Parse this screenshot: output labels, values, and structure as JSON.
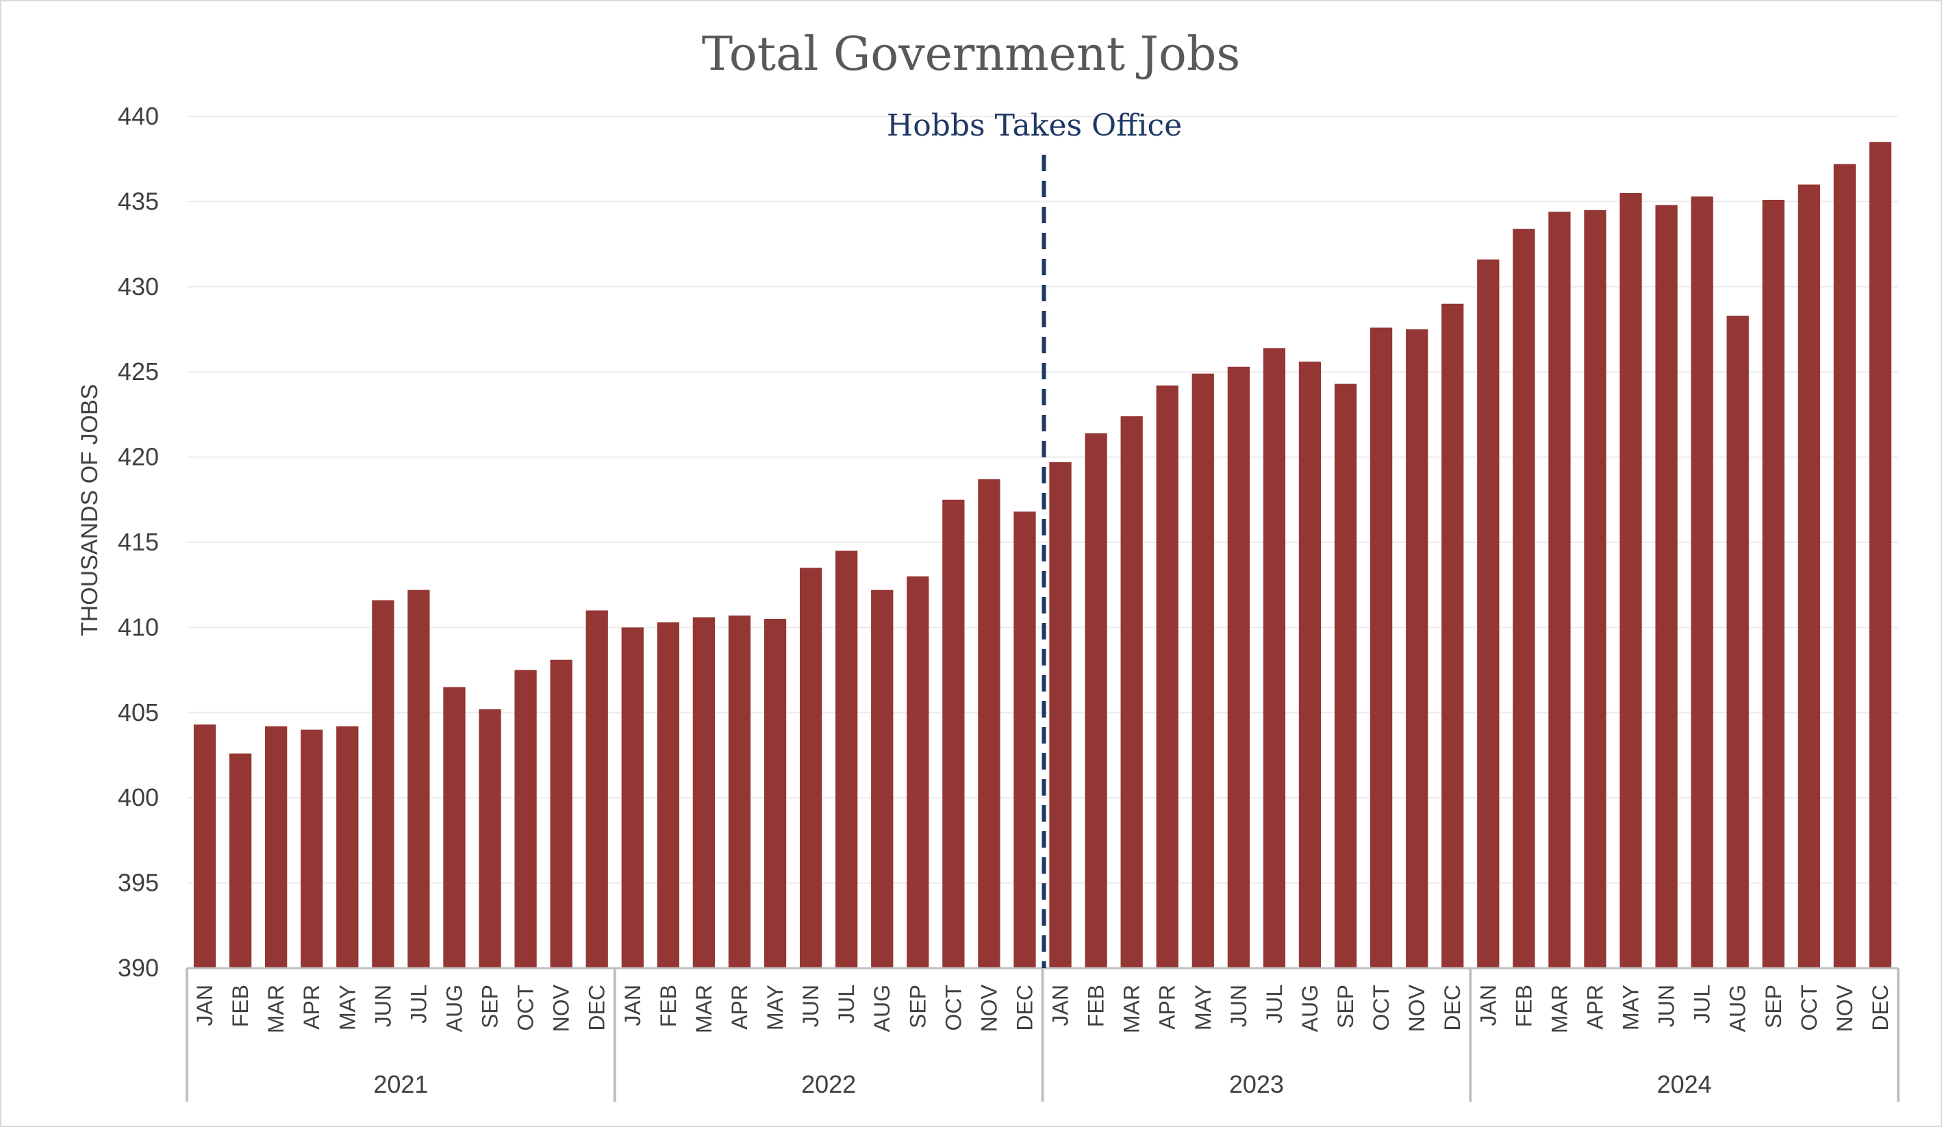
{
  "chart_data": {
    "type": "bar",
    "title": "Total Government Jobs",
    "ylabel": "THOUSANDS OF JOBS",
    "xlabel": "",
    "ylim": [
      390,
      440
    ],
    "yticks": [
      390,
      395,
      400,
      405,
      410,
      415,
      420,
      425,
      430,
      435,
      440
    ],
    "grid": true,
    "legend": "none",
    "bar_color": "#943634",
    "annotation": {
      "label": "Hobbs Takes Office",
      "position_between": [
        "2022 DEC",
        "2023 JAN"
      ],
      "style": "dashed",
      "color": "#1f3864"
    },
    "groups": [
      {
        "year": "2021",
        "months": [
          "JAN",
          "FEB",
          "MAR",
          "APR",
          "MAY",
          "JUN",
          "JUL",
          "AUG",
          "SEP",
          "OCT",
          "NOV",
          "DEC"
        ],
        "values": [
          404.3,
          402.6,
          404.2,
          404.0,
          404.2,
          411.6,
          412.2,
          406.5,
          405.2,
          407.5,
          408.1,
          411.0
        ]
      },
      {
        "year": "2022",
        "months": [
          "JAN",
          "FEB",
          "MAR",
          "APR",
          "MAY",
          "JUN",
          "JUL",
          "AUG",
          "SEP",
          "OCT",
          "NOV",
          "DEC"
        ],
        "values": [
          410.0,
          410.3,
          410.6,
          410.7,
          410.5,
          413.5,
          414.5,
          412.2,
          413.0,
          417.5,
          418.7,
          416.8
        ]
      },
      {
        "year": "2023",
        "months": [
          "JAN",
          "FEB",
          "MAR",
          "APR",
          "MAY",
          "JUN",
          "JUL",
          "AUG",
          "SEP",
          "OCT",
          "NOV",
          "DEC"
        ],
        "values": [
          419.7,
          421.4,
          422.4,
          424.2,
          424.9,
          425.3,
          426.4,
          425.6,
          424.3,
          427.6,
          427.5,
          429.0
        ]
      },
      {
        "year": "2024",
        "months": [
          "JAN",
          "FEB",
          "MAR",
          "APR",
          "MAY",
          "JUN",
          "JUL",
          "AUG",
          "SEP",
          "OCT",
          "NOV",
          "DEC"
        ],
        "values": [
          431.6,
          433.4,
          434.4,
          434.5,
          435.5,
          434.8,
          435.3,
          428.3,
          435.1,
          436.0,
          437.2,
          438.5
        ]
      }
    ]
  }
}
